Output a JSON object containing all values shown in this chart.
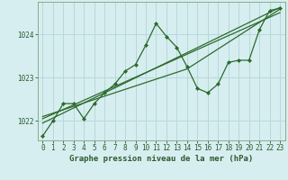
{
  "title": "",
  "xlabel": "Graphe pression niveau de la mer (hPa)",
  "ylabel": "",
  "background_color": "#d6eef0",
  "grid_color": "#b8d8dc",
  "line_color": "#2d6a2d",
  "ylim": [
    1021.55,
    1024.75
  ],
  "xlim": [
    -0.5,
    23.5
  ],
  "yticks": [
    1022,
    1023,
    1024
  ],
  "xticks": [
    0,
    1,
    2,
    3,
    4,
    5,
    6,
    7,
    8,
    9,
    10,
    11,
    12,
    13,
    14,
    15,
    16,
    17,
    18,
    19,
    20,
    21,
    22,
    23
  ],
  "main_x": [
    0,
    1,
    2,
    3,
    4,
    5,
    6,
    7,
    8,
    9,
    10,
    11,
    12,
    13,
    14,
    15,
    16,
    17,
    18,
    19,
    20,
    21,
    22,
    23
  ],
  "main_y": [
    1021.65,
    1022.0,
    1022.4,
    1022.4,
    1022.05,
    1022.4,
    1022.65,
    1022.85,
    1023.15,
    1023.3,
    1023.75,
    1024.25,
    1023.95,
    1023.7,
    1023.25,
    1022.75,
    1022.65,
    1022.85,
    1023.35,
    1023.4,
    1023.4,
    1024.1,
    1024.55,
    1024.6
  ],
  "trend1_x": [
    0,
    23
  ],
  "trend1_y": [
    1022.05,
    1024.5
  ],
  "trend2_x": [
    0,
    14,
    23
  ],
  "trend2_y": [
    1022.1,
    1023.2,
    1024.58
  ],
  "trend3_x": [
    0,
    23
  ],
  "trend3_y": [
    1021.95,
    1024.62
  ],
  "font_color": "#2d5a2d",
  "xlabel_fontsize": 6.5,
  "tick_fontsize": 5.5
}
